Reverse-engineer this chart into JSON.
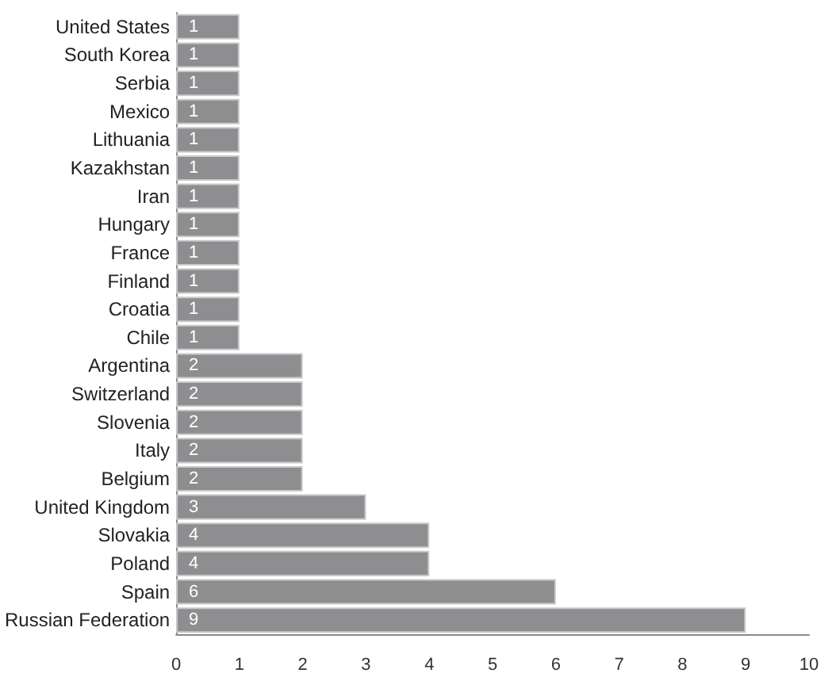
{
  "chart_data": {
    "type": "bar",
    "orientation": "horizontal",
    "categories": [
      "United States",
      "South Korea",
      "Serbia",
      "Mexico",
      "Lithuania",
      "Kazakhstan",
      "Iran",
      "Hungary",
      "France",
      "Finland",
      "Croatia",
      "Chile",
      "Argentina",
      "Switzerland",
      "Slovenia",
      "Italy",
      "Belgium",
      "United Kingdom",
      "Slovakia",
      "Poland",
      "Spain",
      "Russian Federation"
    ],
    "values": [
      1,
      1,
      1,
      1,
      1,
      1,
      1,
      1,
      1,
      1,
      1,
      1,
      2,
      2,
      2,
      2,
      2,
      3,
      4,
      4,
      6,
      9
    ],
    "color": "#8e8e90",
    "xlim": [
      0,
      10
    ],
    "xticks": [
      0,
      1,
      2,
      3,
      4,
      5,
      6,
      7,
      8,
      9,
      10
    ],
    "data_labels": true,
    "grid": false
  }
}
